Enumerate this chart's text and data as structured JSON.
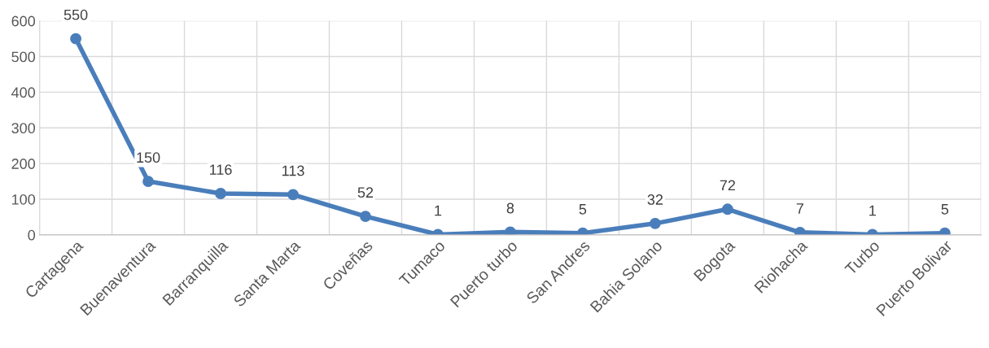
{
  "chart_data": {
    "type": "line",
    "categories": [
      "Cartagena",
      "Buenaventura",
      "Barranquilla",
      "Santa Marta",
      "Coveñas",
      "Tumaco",
      "Puerto turbo",
      "San Andres",
      "Bahia Solano",
      "Bogota",
      "Riohacha",
      "Turbo",
      "Puerto Bolivar"
    ],
    "series": [
      {
        "color": "#4a7ebb",
        "values": [
          550,
          150,
          116,
          113,
          52,
          1,
          8,
          5,
          32,
          72,
          7,
          1,
          5
        ]
      }
    ],
    "ylim": [
      0,
      600
    ],
    "yticks": [
      0,
      100,
      200,
      300,
      400,
      500,
      600
    ],
    "grid": true,
    "data_labels": true,
    "marker": "circle",
    "line_style": "solid"
  }
}
